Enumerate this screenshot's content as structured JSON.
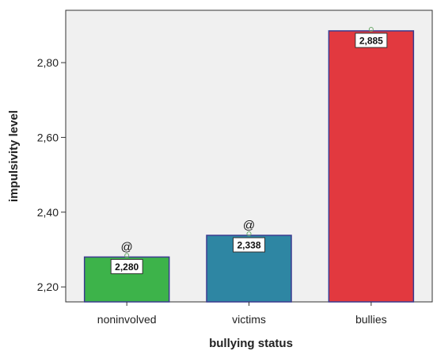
{
  "chart_data": {
    "type": "bar",
    "xlabel": "bullying status",
    "ylabel": "impulsivity level",
    "categories": [
      "noninvolved",
      "victims",
      "bullies"
    ],
    "values": [
      2.28,
      2.338,
      2.885
    ],
    "data_labels": [
      "2,280",
      "2,338",
      "2,885"
    ],
    "annotations": [
      "@",
      "@",
      ""
    ],
    "ylim": [
      2.16,
      2.94
    ],
    "yticks": [
      2.2,
      2.4,
      2.6,
      2.8
    ],
    "ytick_labels": [
      "2,20",
      "2,40",
      "2,60",
      "2,80"
    ],
    "colors": [
      "#3db34a",
      "#2e86a3",
      "#e2393f"
    ],
    "bar_edge_color": "#3b3b8f",
    "plot_background": "#f0f0f0",
    "grid": false,
    "legend": "none"
  }
}
